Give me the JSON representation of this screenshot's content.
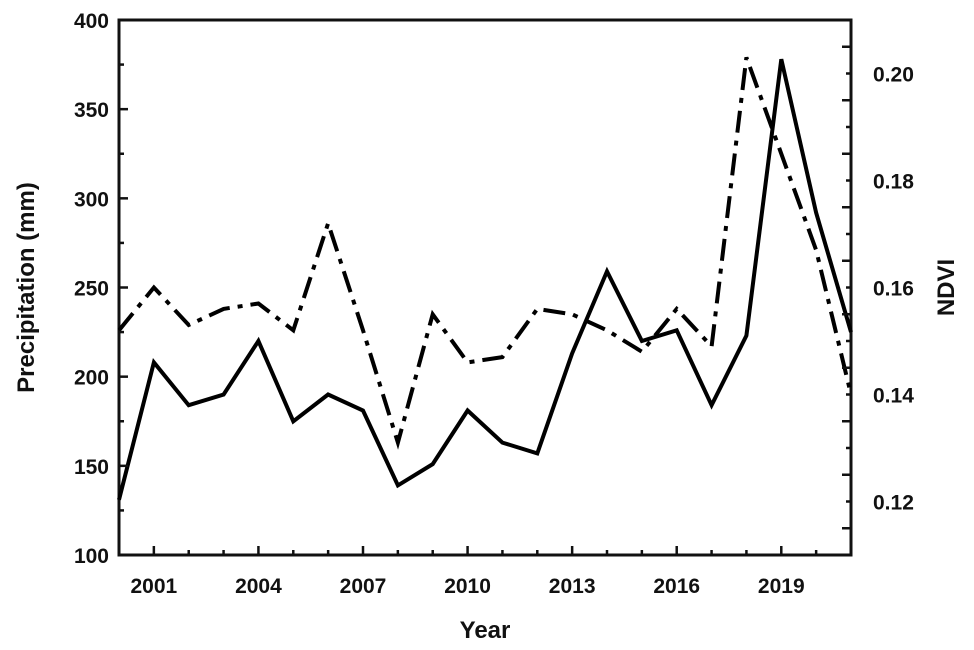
{
  "chart_data": {
    "type": "line",
    "xlabel": "Year",
    "ylabel": "Precipitation (mm)",
    "y2label": "NDVI",
    "xlim": [
      2000,
      2021
    ],
    "x_ticks": [
      2001,
      2004,
      2007,
      2010,
      2013,
      2016,
      2019
    ],
    "ylim": [
      100,
      400
    ],
    "y_ticks": [
      100,
      150,
      200,
      250,
      300,
      350,
      400
    ],
    "y2lim": [
      0.11,
      0.21
    ],
    "y2_ticks": [
      "0.12",
      "0.14",
      "0.16",
      "0.18",
      "0.20"
    ],
    "grid": false,
    "series": [
      {
        "axis": "left",
        "style": "solid",
        "color": "#000000",
        "x": [
          2000,
          2001,
          2002,
          2003,
          2004,
          2005,
          2006,
          2007,
          2008,
          2009,
          2010,
          2011,
          2012,
          2013,
          2014,
          2015,
          2016,
          2017,
          2018,
          2019,
          2020,
          2021
        ],
        "values": [
          131,
          208,
          184,
          190,
          220,
          175,
          190,
          181,
          139,
          151,
          181,
          163,
          157,
          213,
          259,
          220,
          226,
          184,
          223,
          378,
          292,
          225
        ]
      },
      {
        "axis": "right",
        "style": "dash-dot",
        "color": "#000000",
        "x": [
          2000,
          2001,
          2002,
          2003,
          2004,
          2005,
          2006,
          2007,
          2008,
          2009,
          2010,
          2011,
          2012,
          2013,
          2014,
          2015,
          2016,
          2017,
          2018,
          2019,
          2020,
          2021
        ],
        "values": [
          0.152,
          0.16,
          0.153,
          0.156,
          0.157,
          0.152,
          0.172,
          0.152,
          0.131,
          0.155,
          0.146,
          0.147,
          0.156,
          0.155,
          0.152,
          0.148,
          0.156,
          0.149,
          0.203,
          0.185,
          0.167,
          0.14
        ]
      }
    ]
  }
}
